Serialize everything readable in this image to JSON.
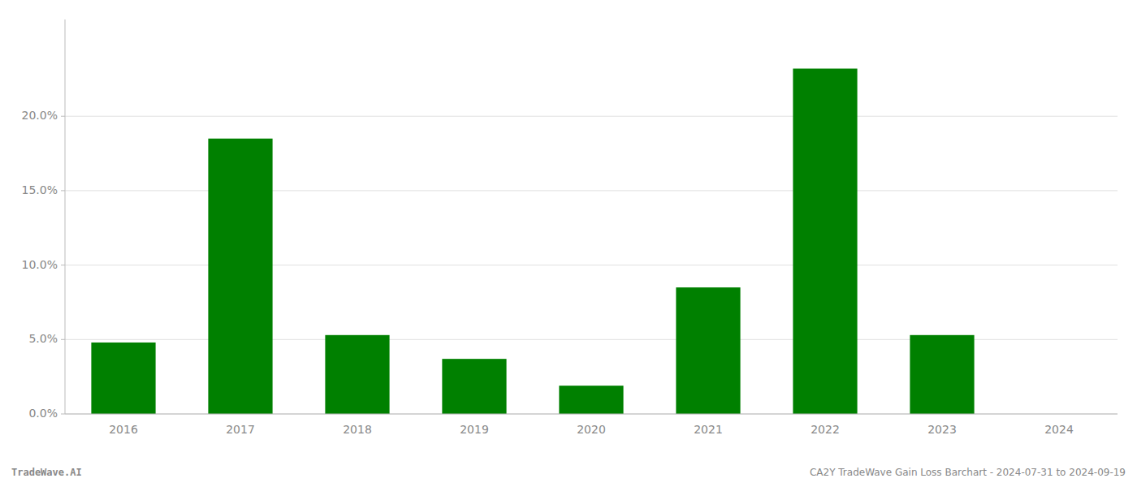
{
  "chart_data": {
    "type": "bar",
    "categories": [
      "2016",
      "2017",
      "2018",
      "2019",
      "2020",
      "2021",
      "2022",
      "2023",
      "2024"
    ],
    "values": [
      0.048,
      0.185,
      0.053,
      0.037,
      0.019,
      0.085,
      0.232,
      0.053,
      0.0
    ],
    "color": "#008000",
    "ylim": [
      0,
      0.265
    ],
    "yticks": [
      {
        "value": 0.0,
        "label": "0.0%"
      },
      {
        "value": 0.05,
        "label": "5.0%"
      },
      {
        "value": 0.1,
        "label": "10.0%"
      },
      {
        "value": 0.15,
        "label": "15.0%"
      },
      {
        "value": 0.2,
        "label": "20.0%"
      }
    ],
    "grid": true,
    "annotations": [
      "TradeWave.AI",
      "CA2Y TradeWave Gain Loss Barchart - 2024-07-31 to 2024-09-19"
    ]
  }
}
